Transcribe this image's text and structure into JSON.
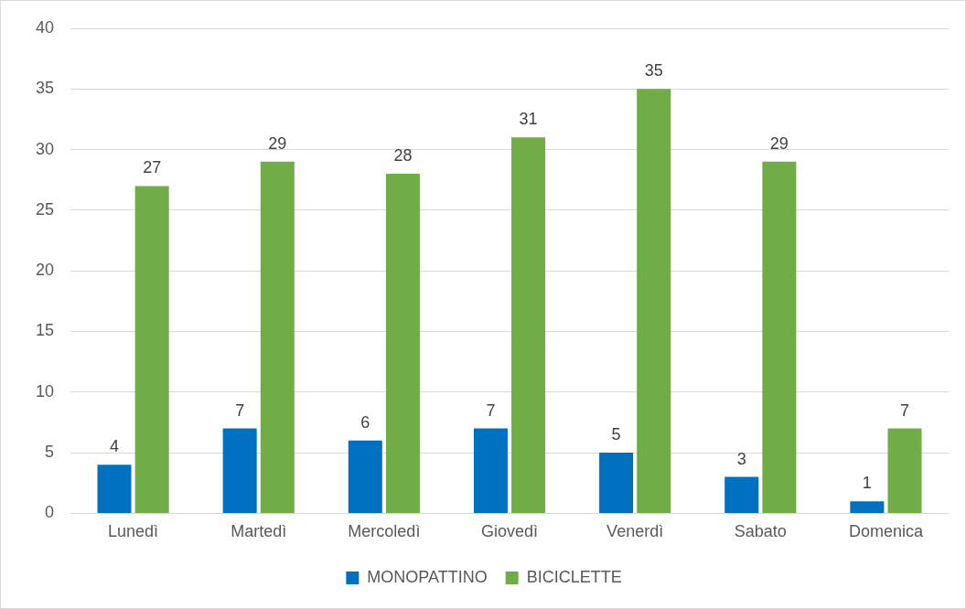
{
  "chart_data": {
    "type": "bar",
    "categories": [
      "Lunedì",
      "Martedì",
      "Mercoledì",
      "Giovedì",
      "Venerdì",
      "Sabato",
      "Domenica"
    ],
    "series": [
      {
        "name": "MONOPATTINO",
        "color": "#0070c0",
        "values": [
          4,
          7,
          6,
          7,
          5,
          3,
          1
        ]
      },
      {
        "name": "BICICLETTE",
        "color": "#70ad47",
        "values": [
          27,
          29,
          28,
          31,
          35,
          29,
          7
        ]
      }
    ],
    "ylim": [
      0,
      40
    ],
    "yticks": [
      0,
      5,
      10,
      15,
      20,
      25,
      30,
      35,
      40
    ],
    "grid": "y",
    "legend": "bottom",
    "data_labels": true
  }
}
